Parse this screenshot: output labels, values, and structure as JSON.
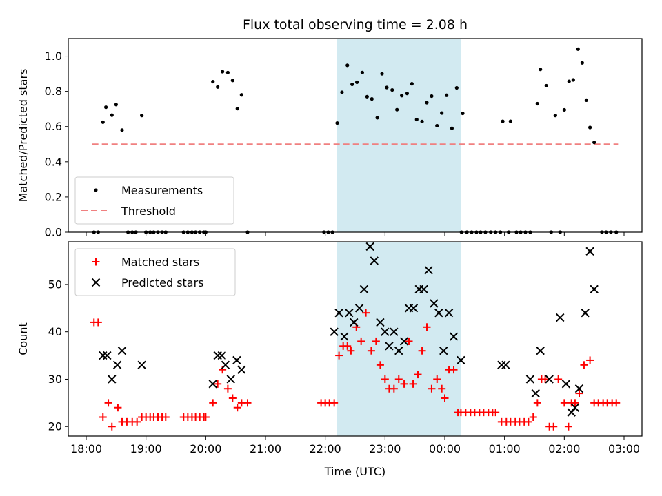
{
  "title": "Flux total observing time = 2.08 h",
  "xlabel": "Time (UTC)",
  "x_ticks": [
    "18:00",
    "19:00",
    "20:00",
    "21:00",
    "22:00",
    "23:00",
    "00:00",
    "01:00",
    "02:00",
    "03:00"
  ],
  "x_ticks_h": [
    18,
    19,
    20,
    21,
    22,
    23,
    24,
    25,
    26,
    27
  ],
  "colors": {
    "measurements": "#000000",
    "threshold": "#f08080",
    "matched": "#ff0000",
    "predicted": "#000000",
    "span": "#add8e6"
  },
  "chart_data": [
    {
      "type": "scatter",
      "ylabel": "Matched/Predicted stars",
      "xlim": [
        17.7,
        27.3
      ],
      "ylim": [
        0.0,
        1.1
      ],
      "y_ticks": [
        "0.0",
        "0.2",
        "0.4",
        "0.6",
        "0.8",
        "1.0"
      ],
      "y_ticks_v": [
        0.0,
        0.2,
        0.4,
        0.6,
        0.8,
        1.0
      ],
      "shaded_span": [
        22.2,
        24.27
      ],
      "legend": {
        "location": "lower-left",
        "entries": [
          "Measurements",
          "Threshold"
        ]
      },
      "threshold": {
        "name": "Threshold",
        "y": 0.5,
        "x_range": [
          18.1,
          26.9
        ]
      },
      "series": [
        {
          "name": "Measurements",
          "x": [
            18.13,
            18.2,
            18.28,
            18.33,
            18.43,
            18.5,
            18.6,
            18.7,
            18.77,
            18.83,
            18.93,
            19.0,
            19.07,
            19.13,
            19.2,
            19.27,
            19.33,
            19.63,
            19.7,
            19.77,
            19.83,
            19.9,
            19.97,
            20.0,
            20.12,
            20.2,
            20.28,
            20.37,
            20.45,
            20.53,
            20.6,
            20.7,
            21.98,
            22.05,
            22.12,
            22.2,
            22.28,
            22.37,
            22.45,
            22.53,
            22.62,
            22.7,
            22.78,
            22.87,
            22.95,
            23.03,
            23.12,
            23.2,
            23.28,
            23.37,
            23.45,
            23.53,
            23.62,
            23.7,
            23.78,
            23.87,
            23.95,
            24.03,
            24.12,
            24.2,
            24.28,
            24.3,
            24.37,
            24.45,
            24.53,
            24.6,
            24.68,
            24.77,
            24.85,
            24.93,
            24.97,
            25.07,
            25.1,
            25.2,
            25.27,
            25.35,
            25.43,
            25.55,
            25.6,
            25.7,
            25.78,
            25.85,
            25.93,
            26.0,
            26.08,
            26.15,
            26.23,
            26.3,
            26.37,
            26.43,
            26.5,
            26.63,
            26.7,
            26.78,
            26.87
          ],
          "y": [
            0.0,
            0.0,
            0.625,
            0.71,
            0.665,
            0.725,
            0.58,
            0.0,
            0.0,
            0.0,
            0.663,
            0.0,
            0.0,
            0.0,
            0.0,
            0.0,
            0.0,
            0.0,
            0.0,
            0.0,
            0.0,
            0.0,
            0.0,
            0.0,
            0.855,
            0.825,
            0.912,
            0.907,
            0.862,
            0.702,
            0.78,
            0.0,
            0.0,
            0.0,
            0.0,
            0.62,
            0.795,
            0.948,
            0.84,
            0.852,
            0.907,
            0.77,
            0.757,
            0.65,
            0.9,
            0.822,
            0.808,
            0.696,
            0.776,
            0.788,
            0.843,
            0.64,
            0.629,
            0.736,
            0.773,
            0.605,
            0.677,
            0.778,
            0.59,
            0.82,
            0.0,
            0.675,
            0.0,
            0.0,
            0.0,
            0.0,
            0.0,
            0.0,
            0.0,
            0.0,
            0.63,
            0.0,
            0.63,
            0.0,
            0.0,
            0.0,
            0.0,
            0.73,
            0.925,
            0.832,
            0.0,
            0.663,
            0.0,
            0.695,
            0.857,
            0.865,
            1.04,
            0.962,
            0.75,
            0.595,
            0.51,
            0.0,
            0.0,
            0.0,
            0.0
          ]
        }
      ]
    },
    {
      "type": "scatter",
      "ylabel": "Count",
      "xlabel": "Time (UTC)",
      "xlim": [
        17.7,
        27.3
      ],
      "ylim": [
        18,
        59
      ],
      "y_ticks": [
        "20",
        "30",
        "40",
        "50"
      ],
      "y_ticks_v": [
        20,
        30,
        40,
        50
      ],
      "shaded_span": [
        22.2,
        24.27
      ],
      "legend": {
        "location": "upper-left",
        "entries": [
          "Matched stars",
          "Predicted stars"
        ]
      },
      "series": [
        {
          "name": "Matched stars",
          "marker": "+",
          "x": [
            18.13,
            18.2,
            18.28,
            18.37,
            18.43,
            18.53,
            18.6,
            18.68,
            18.77,
            18.85,
            18.93,
            19.0,
            19.07,
            19.13,
            19.2,
            19.27,
            19.33,
            19.63,
            19.7,
            19.77,
            19.83,
            19.9,
            19.97,
            20.0,
            20.12,
            20.2,
            20.28,
            20.37,
            20.45,
            20.53,
            20.6,
            20.7,
            21.93,
            22.0,
            22.07,
            22.15,
            22.23,
            22.3,
            22.37,
            22.43,
            22.52,
            22.6,
            22.68,
            22.77,
            22.85,
            22.92,
            23.0,
            23.07,
            23.15,
            23.23,
            23.32,
            23.4,
            23.47,
            23.55,
            23.62,
            23.7,
            23.78,
            23.87,
            23.95,
            24.0,
            24.07,
            24.15,
            24.22,
            24.27,
            24.35,
            24.43,
            24.5,
            24.58,
            24.65,
            24.73,
            24.8,
            24.85,
            24.95,
            25.03,
            25.1,
            25.18,
            25.25,
            25.33,
            25.4,
            25.48,
            25.55,
            25.62,
            25.68,
            25.75,
            25.82,
            25.9,
            26.0,
            26.07,
            26.12,
            26.18,
            26.25,
            26.33,
            26.43,
            26.5,
            26.57,
            26.65,
            26.72,
            26.8,
            26.87
          ],
          "y": [
            42,
            42,
            22,
            25,
            20,
            24,
            21,
            21,
            21,
            21,
            22,
            22,
            22,
            22,
            22,
            22,
            22,
            22,
            22,
            22,
            22,
            22,
            22,
            22,
            25,
            29,
            32,
            28,
            26,
            24,
            25,
            25,
            25,
            25,
            25,
            25,
            35,
            37,
            37,
            36,
            41,
            38,
            44,
            36,
            38,
            33,
            30,
            28,
            28,
            30,
            29,
            38,
            29,
            31,
            36,
            41,
            28,
            30,
            28,
            26,
            32,
            32,
            23,
            23,
            23,
            23,
            23,
            23,
            23,
            23,
            23,
            23,
            21,
            21,
            21,
            21,
            21,
            21,
            21,
            22,
            25,
            30,
            30,
            20,
            20,
            30,
            25,
            20,
            25,
            25,
            27,
            33,
            34,
            25,
            25,
            25,
            25,
            25,
            25
          ]
        },
        {
          "name": "Predicted stars",
          "marker": "x",
          "x": [
            18.28,
            18.35,
            18.43,
            18.52,
            18.6,
            18.93,
            20.12,
            20.2,
            20.27,
            20.33,
            20.42,
            20.52,
            20.6,
            22.15,
            22.23,
            22.32,
            22.4,
            22.48,
            22.57,
            22.65,
            22.75,
            22.82,
            22.92,
            23.0,
            23.07,
            23.15,
            23.23,
            23.32,
            23.4,
            23.48,
            23.57,
            23.65,
            23.73,
            23.82,
            23.9,
            23.98,
            24.07,
            24.15,
            24.27,
            24.95,
            25.02,
            25.43,
            25.52,
            25.6,
            25.75,
            25.93,
            26.03,
            26.12,
            26.18,
            26.25,
            26.35,
            26.43,
            26.5
          ],
          "y": [
            35,
            35,
            30,
            33,
            36,
            33,
            29,
            35,
            35,
            33,
            30,
            34,
            32,
            40,
            44,
            39,
            44,
            42,
            45,
            49,
            58,
            55,
            42,
            40,
            37,
            40,
            36,
            38,
            45,
            45,
            49,
            49,
            53,
            46,
            44,
            36,
            44,
            39,
            34,
            33,
            33,
            30,
            27,
            36,
            30,
            43,
            29,
            23,
            24,
            28,
            44,
            57,
            49
          ]
        }
      ]
    }
  ]
}
